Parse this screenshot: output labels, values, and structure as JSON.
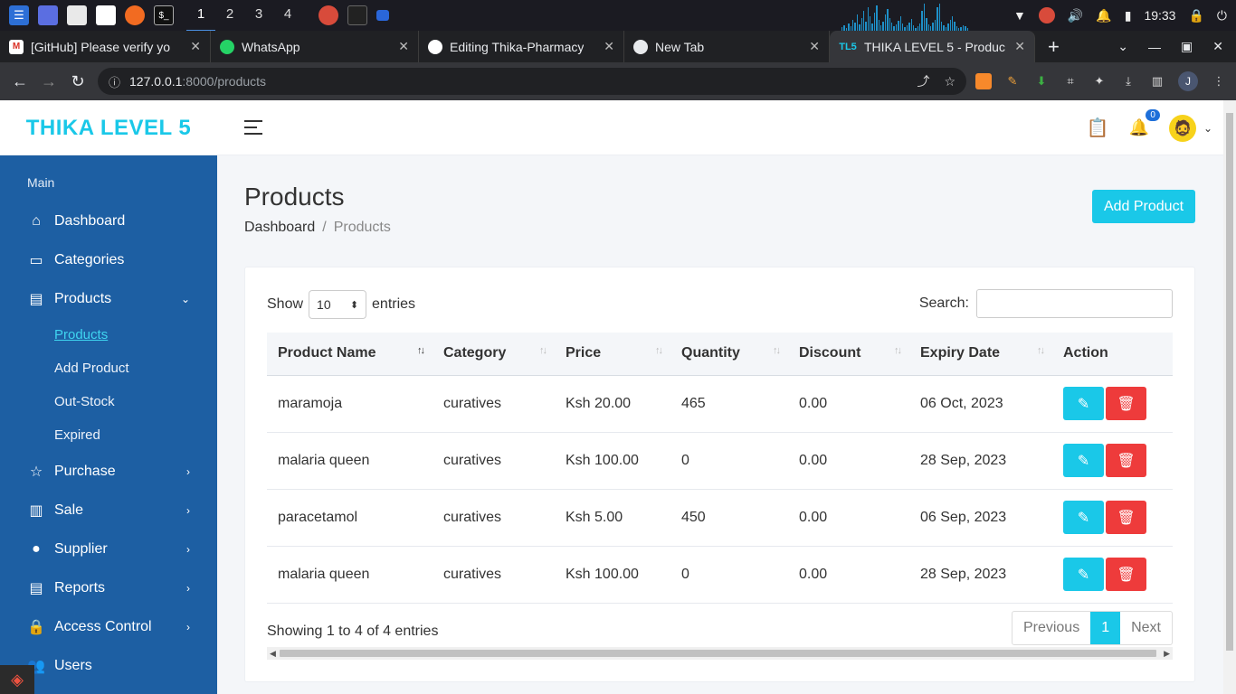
{
  "taskbar": {
    "workspaces": [
      "1",
      "2",
      "3",
      "4"
    ],
    "clock": "19:33"
  },
  "browser": {
    "tabs": [
      {
        "title": "[GitHub] Please verify yo",
        "icon": "gmail-icon"
      },
      {
        "title": "WhatsApp",
        "icon": "whatsapp-icon"
      },
      {
        "title": "Editing Thika-Pharmacy",
        "icon": "github-icon"
      },
      {
        "title": "New Tab",
        "icon": "chrome-icon"
      },
      {
        "title": "THIKA LEVEL 5 - Produc",
        "icon": "tl5-icon",
        "favicon_text": "TL5"
      }
    ],
    "url_host": "127.0.0.1",
    "url_path": ":8000/products",
    "profile_initial": "J"
  },
  "app": {
    "brand": "THIKA LEVEL 5",
    "notification_count": "0",
    "accent": "#1ac8e8",
    "sidebar_color": "#1d5fa3"
  },
  "sidebar": {
    "section": "Main",
    "items": [
      {
        "label": "Dashboard",
        "icon": "home-icon"
      },
      {
        "label": "Categories",
        "icon": "columns-icon"
      },
      {
        "label": "Products",
        "icon": "document-icon",
        "expanded": true
      },
      {
        "label": "Purchase",
        "icon": "star-icon"
      },
      {
        "label": "Sale",
        "icon": "bar-chart-icon"
      },
      {
        "label": "Supplier",
        "icon": "user-icon"
      },
      {
        "label": "Reports",
        "icon": "document-icon"
      },
      {
        "label": "Access Control",
        "icon": "lock-icon"
      },
      {
        "label": "Users",
        "icon": "users-icon"
      }
    ],
    "sub_items": [
      "Products",
      "Add Product",
      "Out-Stock",
      "Expired"
    ]
  },
  "page": {
    "title": "Products",
    "breadcrumb": [
      "Dashboard",
      "Products"
    ],
    "add_button": "Add Product"
  },
  "table_controls": {
    "show_label": "Show",
    "entries_value": "10",
    "entries_label": "entries",
    "search_label": "Search:",
    "search_value": ""
  },
  "table": {
    "columns": [
      "Product Name",
      "Category",
      "Price",
      "Quantity",
      "Discount",
      "Expiry Date",
      "Action"
    ],
    "rows": [
      [
        "maramoja",
        "curatives",
        "Ksh 20.00",
        "465",
        "0.00",
        "06 Oct, 2023"
      ],
      [
        "malaria queen",
        "curatives",
        "Ksh 100.00",
        "0",
        "0.00",
        "28 Sep, 2023"
      ],
      [
        "paracetamol",
        "curatives",
        "Ksh 5.00",
        "450",
        "0.00",
        "06 Sep, 2023"
      ],
      [
        "malaria queen",
        "curatives",
        "Ksh 100.00",
        "0",
        "0.00",
        "28 Sep, 2023"
      ]
    ]
  },
  "pagination": {
    "info": "Showing 1 to 4 of 4 entries",
    "previous": "Previous",
    "current": "1",
    "next": "Next"
  }
}
